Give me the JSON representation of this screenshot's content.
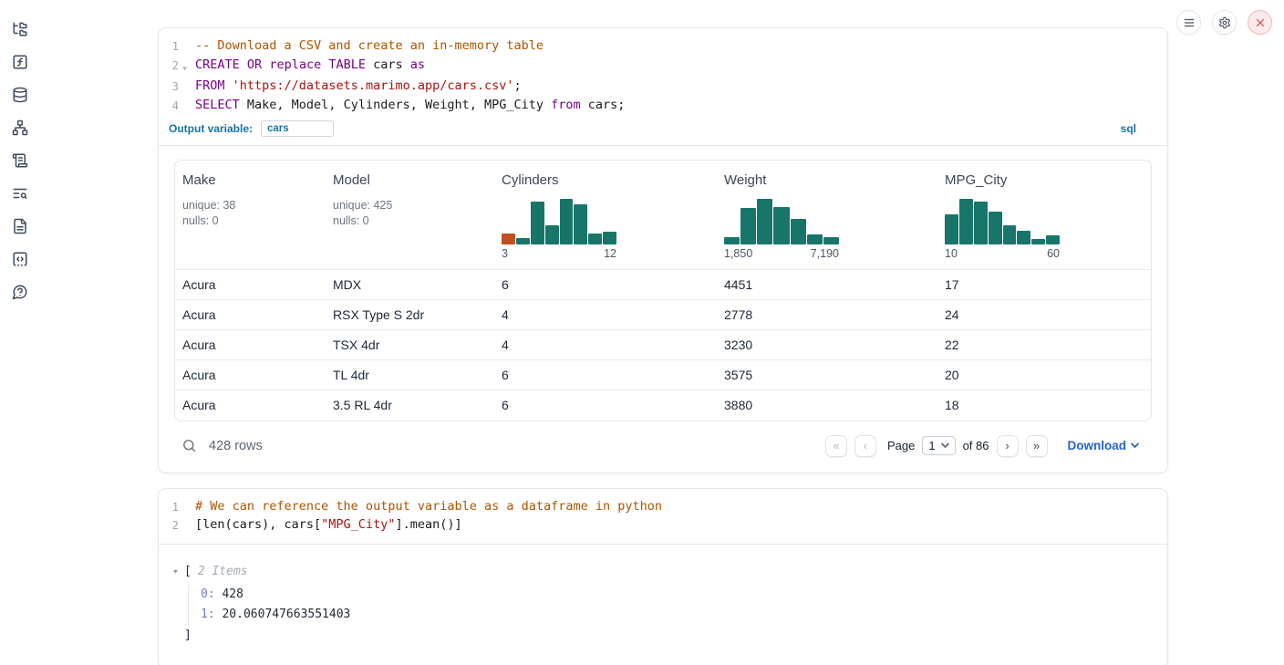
{
  "sidebar": {
    "items": [
      {
        "icon": "file-explorer-tree-icon"
      },
      {
        "icon": "variables-function-icon"
      },
      {
        "icon": "datasets-database-icon"
      },
      {
        "icon": "dependency-graph-icon"
      },
      {
        "icon": "outline-scroll-icon"
      },
      {
        "icon": "logs-search-icon"
      },
      {
        "icon": "documentation-file-icon"
      },
      {
        "icon": "snippets-code-icon"
      },
      {
        "icon": "help-question-icon"
      }
    ]
  },
  "top_actions": {
    "buttons": [
      {
        "icon": "menu-icon"
      },
      {
        "icon": "settings-gear-icon"
      },
      {
        "icon": "shutdown-close-icon"
      }
    ]
  },
  "sql_cell": {
    "lines": [
      {
        "num": "1",
        "fold": false,
        "tokens": [
          {
            "s": "com",
            "t": "-- Download a CSV and create an in-memory table"
          }
        ]
      },
      {
        "num": "2",
        "fold": true,
        "tokens": [
          {
            "s": "kw",
            "t": "CREATE"
          },
          {
            "s": "pl",
            "t": " "
          },
          {
            "s": "kw",
            "t": "OR"
          },
          {
            "s": "pl",
            "t": " "
          },
          {
            "s": "kw",
            "t": "replace"
          },
          {
            "s": "pl",
            "t": " "
          },
          {
            "s": "kw",
            "t": "TABLE"
          },
          {
            "s": "pl",
            "t": " cars "
          },
          {
            "s": "kw",
            "t": "as"
          }
        ]
      },
      {
        "num": "3",
        "fold": false,
        "tokens": [
          {
            "s": "kw",
            "t": "FROM"
          },
          {
            "s": "pl",
            "t": " "
          },
          {
            "s": "str",
            "t": "'https://datasets.marimo.app/cars.csv'"
          },
          {
            "s": "pl",
            "t": ";"
          }
        ]
      },
      {
        "num": "4",
        "fold": false,
        "tokens": [
          {
            "s": "kw",
            "t": "SELECT"
          },
          {
            "s": "pl",
            "t": " Make, Model, Cylinders, Weight, MPG_City "
          },
          {
            "s": "kw",
            "t": "from"
          },
          {
            "s": "pl",
            "t": " cars;"
          }
        ]
      }
    ],
    "output_variable_label": "Output variable:",
    "output_variable_value": "cars",
    "language_badge": "sql"
  },
  "table": {
    "columns": [
      {
        "label": "Make",
        "stats": [
          "unique: 38",
          "nulls: 0"
        ]
      },
      {
        "label": "Model",
        "stats": [
          "unique: 425",
          "nulls: 0"
        ]
      },
      {
        "label": "Cylinders"
      },
      {
        "label": "Weight"
      },
      {
        "label": "MPG_City"
      }
    ],
    "rows": [
      [
        "Acura",
        "MDX",
        "6",
        "4451",
        "17"
      ],
      [
        "Acura",
        "RSX Type S 2dr",
        "4",
        "2778",
        "24"
      ],
      [
        "Acura",
        "TSX 4dr",
        "4",
        "3230",
        "22"
      ],
      [
        "Acura",
        "TL 4dr",
        "6",
        "3575",
        "20"
      ],
      [
        "Acura",
        "3.5 RL 4dr",
        "6",
        "3880",
        "18"
      ]
    ],
    "footer": {
      "row_count": "428 rows",
      "first_page": "«",
      "prev_page": "‹",
      "page_label": "Page",
      "page_value": "1",
      "of_label": "of 86",
      "next_page": "›",
      "last_page": "»",
      "download_label": "Download"
    }
  },
  "chart_data": [
    {
      "type": "bar",
      "title": "Cylinders",
      "note": "histogram in column header; first bin highlighted",
      "x_min_label": "3",
      "x_max_label": "12",
      "relative_heights": [
        0.24,
        0.13,
        0.93,
        0.41,
        1.0,
        0.87,
        0.24,
        0.29
      ],
      "bar_color": "#17756a",
      "highlight_first_bar": true,
      "highlight_color": "#c14f21"
    },
    {
      "type": "bar",
      "title": "Weight",
      "note": "histogram in column header",
      "x_min_label": "1,850",
      "x_max_label": "7,190",
      "relative_heights": [
        0.15,
        0.8,
        1.0,
        0.81,
        0.55,
        0.22,
        0.16
      ],
      "bar_color": "#17756a",
      "highlight_first_bar": false,
      "highlight_color": "#c14f21"
    },
    {
      "type": "bar",
      "title": "MPG_City",
      "note": "histogram in column header",
      "x_min_label": "10",
      "x_max_label": "60",
      "relative_heights": [
        0.65,
        1.0,
        0.93,
        0.72,
        0.42,
        0.3,
        0.12,
        0.2
      ],
      "bar_color": "#17756a",
      "highlight_first_bar": false,
      "highlight_color": "#c14f21"
    }
  ],
  "python_cell": {
    "lines": [
      {
        "num": "1",
        "fold": false,
        "tokens": [
          {
            "s": "com",
            "t": "# We can reference the output variable as a dataframe in python"
          }
        ]
      },
      {
        "num": "2",
        "fold": false,
        "tokens": [
          {
            "s": "pl",
            "t": "[len(cars), cars["
          },
          {
            "s": "str",
            "t": "\"MPG_City\""
          },
          {
            "s": "pl",
            "t": "].mean()]"
          }
        ]
      }
    ],
    "output": {
      "bracket_open": "[",
      "items_label": "2 Items",
      "entries": [
        {
          "key": "0:",
          "value": "428"
        },
        {
          "key": "1:",
          "value": "20.060747663551403"
        }
      ],
      "bracket_close": "]"
    }
  }
}
